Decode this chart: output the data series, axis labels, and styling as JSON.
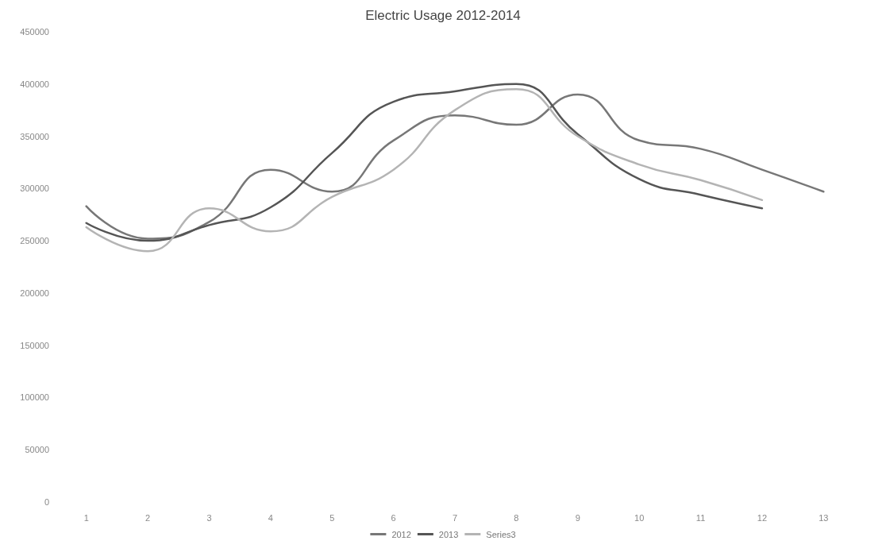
{
  "chart_data": {
    "type": "line",
    "title": "Electric Usage 2012-2014",
    "categories": [
      "1",
      "2",
      "3",
      "4",
      "5",
      "6",
      "7",
      "8",
      "9",
      "10",
      "11",
      "12",
      "13"
    ],
    "series": [
      {
        "name": "2012",
        "color": "#777777",
        "values": [
          283000,
          252000,
          268000,
          318000,
          297000,
          346000,
          370000,
          361000,
          390000,
          346000,
          338000,
          318000,
          297000
        ]
      },
      {
        "name": "2013",
        "color": "#555555",
        "values": [
          267000,
          250000,
          265000,
          282000,
          334000,
          383000,
          393000,
          400000,
          352000,
          309000,
          294000,
          281000,
          null
        ]
      },
      {
        "name": "Series3",
        "color": "#b4b4b4",
        "values": [
          263000,
          240000,
          281000,
          259000,
          292000,
          318000,
          375000,
          395000,
          350000,
          323000,
          308000,
          289000,
          null
        ]
      }
    ],
    "ylim": [
      0,
      450000
    ],
    "yticks": [
      0,
      50000,
      100000,
      150000,
      200000,
      250000,
      300000,
      350000,
      400000,
      450000
    ],
    "grid": false,
    "legend": "bottom",
    "marker": "none",
    "line_style": "solid"
  }
}
